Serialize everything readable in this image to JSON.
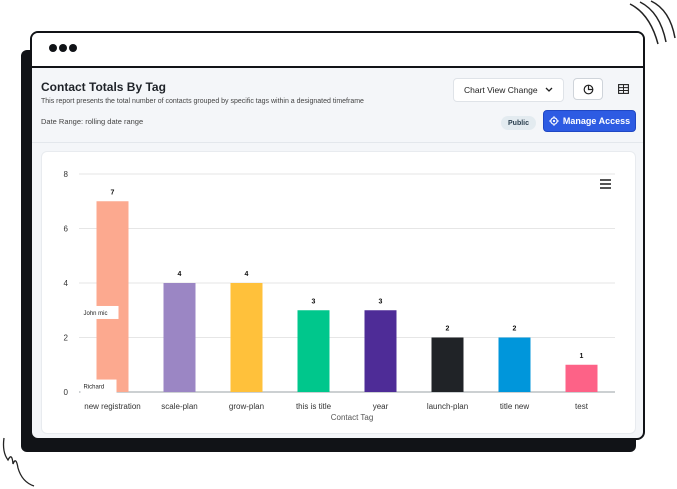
{
  "report": {
    "title": "Contact Totals By Tag",
    "description": "This report presents the total number of contacts grouped by specific tags within a designated timeframe",
    "date_range": "Date Range: rolling date range"
  },
  "toolbar": {
    "chart_view_label": "Chart View Change",
    "visibility_badge": "Public",
    "manage_access_label": "Manage Access"
  },
  "colors": {
    "accent": "#2d5be3"
  },
  "chart_data": {
    "type": "bar",
    "title": "",
    "xlabel": "Contact Tag",
    "ylabel": "",
    "ylim": [
      0,
      8
    ],
    "yticks": [
      0,
      2,
      4,
      6,
      8
    ],
    "categories": [
      "new registration",
      "scale-plan",
      "grow-plan",
      "this is title",
      "year",
      "launch-plan",
      "title new",
      "test"
    ],
    "values": [
      7,
      4,
      4,
      3,
      3,
      2,
      2,
      1
    ],
    "colors": [
      "#fca98f",
      "#9b86c4",
      "#ffc13b",
      "#00c78c",
      "#4e2c97",
      "#202327",
      "#0096db",
      "#fd6287"
    ],
    "annotations": [
      "John mic",
      "Richard"
    ]
  }
}
